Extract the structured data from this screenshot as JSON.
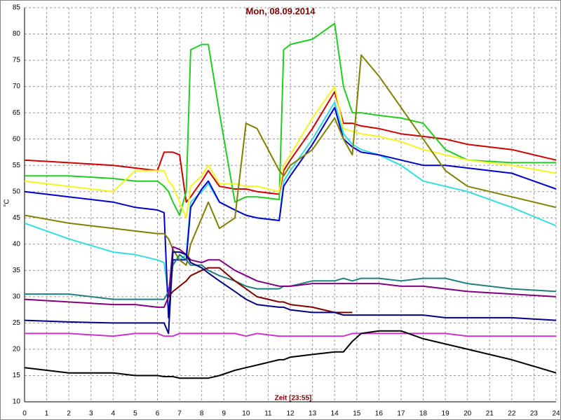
{
  "chart_data": {
    "type": "line",
    "title": "Mon, 08.09.2014",
    "xlabel": "Zeit [23:55]",
    "ylabel": "°C",
    "x": [
      0,
      2,
      4,
      5,
      6,
      6.3,
      6.5,
      6.7,
      7,
      7.3,
      7.5,
      8,
      8.3,
      8.8,
      9.5,
      10,
      10.5,
      11.5,
      11.7,
      12,
      13,
      14,
      14.4,
      14.8,
      15.2,
      16,
      17,
      18,
      19,
      20,
      22,
      24
    ],
    "xlim": [
      0,
      24
    ],
    "xticks": [
      0,
      1,
      2,
      3,
      4,
      5,
      6,
      7,
      8,
      9,
      10,
      11,
      12,
      13,
      14,
      15,
      16,
      17,
      18,
      19,
      20,
      21,
      22,
      23,
      24
    ],
    "ylim": [
      10,
      85
    ],
    "yticks": [
      10,
      15,
      20,
      25,
      30,
      35,
      40,
      45,
      50,
      55,
      60,
      65,
      70,
      75,
      80,
      85
    ],
    "grid": true,
    "series": [
      {
        "color": "#d00000",
        "values": [
          56,
          55.5,
          55,
          54.5,
          54,
          57.5,
          57.5,
          57.5,
          57,
          48,
          49,
          52,
          54,
          51,
          50.5,
          50.5,
          50,
          49.5,
          54,
          56,
          62,
          69,
          63,
          63,
          62.5,
          62,
          61,
          60.5,
          60,
          59,
          58,
          56
        ]
      },
      {
        "color": "#22cc22",
        "values": [
          53,
          53,
          52.5,
          52,
          52,
          51,
          50,
          48,
          45.5,
          50,
          77,
          78,
          78,
          65,
          48,
          49,
          49,
          48.5,
          77,
          78,
          79,
          82,
          70,
          65,
          65,
          64.5,
          64,
          63,
          58,
          56,
          55.5,
          55.5
        ]
      },
      {
        "color": "#f5f522",
        "values": [
          52,
          51,
          50,
          54,
          54,
          54,
          52,
          51,
          48,
          45,
          51,
          53,
          55,
          51.5,
          51.5,
          51,
          51,
          50,
          55,
          57,
          64,
          70,
          62,
          61.5,
          61,
          60.5,
          59.5,
          58,
          57,
          56,
          55,
          53.5
        ]
      },
      {
        "color": "#33dddd",
        "values": [
          44,
          41,
          38.5,
          38,
          37,
          36.5,
          30,
          37,
          37,
          38,
          48,
          50,
          51.5,
          48,
          46.5,
          45.5,
          45,
          44.5,
          52,
          54,
          60,
          67,
          61,
          59,
          58,
          57,
          55,
          52,
          51,
          50,
          47,
          43.5
        ]
      },
      {
        "color": "#0000cc",
        "values": [
          50,
          49,
          48,
          47,
          46.5,
          46,
          26,
          37,
          37,
          37,
          47,
          50.5,
          52,
          48,
          46.5,
          45.5,
          45,
          44.5,
          51,
          53,
          59,
          66,
          60,
          58.5,
          57.5,
          57,
          56,
          55,
          55,
          54.5,
          53.5,
          50.5
        ]
      },
      {
        "color": "#808000",
        "values": [
          45.5,
          44,
          43,
          42.5,
          42,
          42,
          41,
          39,
          37,
          36,
          40,
          45,
          48,
          43,
          45,
          63,
          62,
          54,
          53,
          55,
          58,
          64,
          60,
          57,
          76,
          72,
          66,
          60,
          54,
          51,
          49,
          47
        ]
      },
      {
        "color": "#208080",
        "values": [
          30.5,
          30.5,
          29.5,
          29.5,
          29.5,
          29.5,
          31,
          36,
          38,
          37,
          36,
          36,
          35,
          34,
          33,
          32,
          31.5,
          31.5,
          32,
          32,
          33,
          33,
          33.5,
          33,
          33.5,
          33.5,
          33,
          33.5,
          33.5,
          32.5,
          31.5,
          31
        ]
      },
      {
        "color": "#800080",
        "values": [
          29.5,
          29,
          28.5,
          28.5,
          28,
          28,
          30,
          39.5,
          39,
          38,
          37,
          36.5,
          37,
          37,
          35,
          34,
          33,
          32,
          32,
          32,
          32.5,
          32.5,
          32.5,
          32.5,
          32.5,
          32.5,
          32,
          32,
          31.5,
          31,
          30.5,
          30
        ]
      },
      {
        "color": "#800000",
        "values": [
          null,
          null,
          null,
          null,
          null,
          null,
          30,
          31,
          32,
          33,
          34,
          35,
          35.5,
          35.5,
          33,
          31.5,
          30,
          29,
          29,
          28.5,
          28,
          27,
          27,
          27,
          null,
          null,
          null,
          null,
          null,
          null,
          null,
          null
        ]
      },
      {
        "color": "#000080",
        "values": [
          25.5,
          25.2,
          25,
          25,
          25,
          25,
          23,
          38.5,
          38.5,
          38,
          36.5,
          35.5,
          34.5,
          33,
          31,
          29.5,
          28.5,
          28,
          28,
          27.5,
          27,
          27,
          26.5,
          26.5,
          26.5,
          26.5,
          26.5,
          26.5,
          26,
          26,
          26,
          25.5
        ]
      },
      {
        "color": "#cc33cc",
        "values": [
          23,
          23,
          22.5,
          23,
          23,
          22.5,
          22.5,
          22.5,
          23,
          23,
          23,
          23,
          23,
          23,
          23,
          22.5,
          23,
          22.5,
          22.5,
          22.5,
          22.5,
          22.5,
          22.5,
          23,
          23,
          23,
          23,
          23,
          23,
          22.5,
          22.5,
          22.5
        ]
      },
      {
        "color": "#000000",
        "values": [
          16.5,
          15.5,
          15.5,
          15,
          15,
          14.8,
          14.8,
          14.8,
          14.5,
          14.5,
          14.5,
          14.5,
          14.5,
          15,
          16,
          16.5,
          17,
          18,
          18,
          18.5,
          19,
          19.5,
          19.5,
          21.5,
          23,
          23.5,
          23.5,
          22,
          21,
          20,
          18,
          15.5
        ]
      }
    ]
  }
}
